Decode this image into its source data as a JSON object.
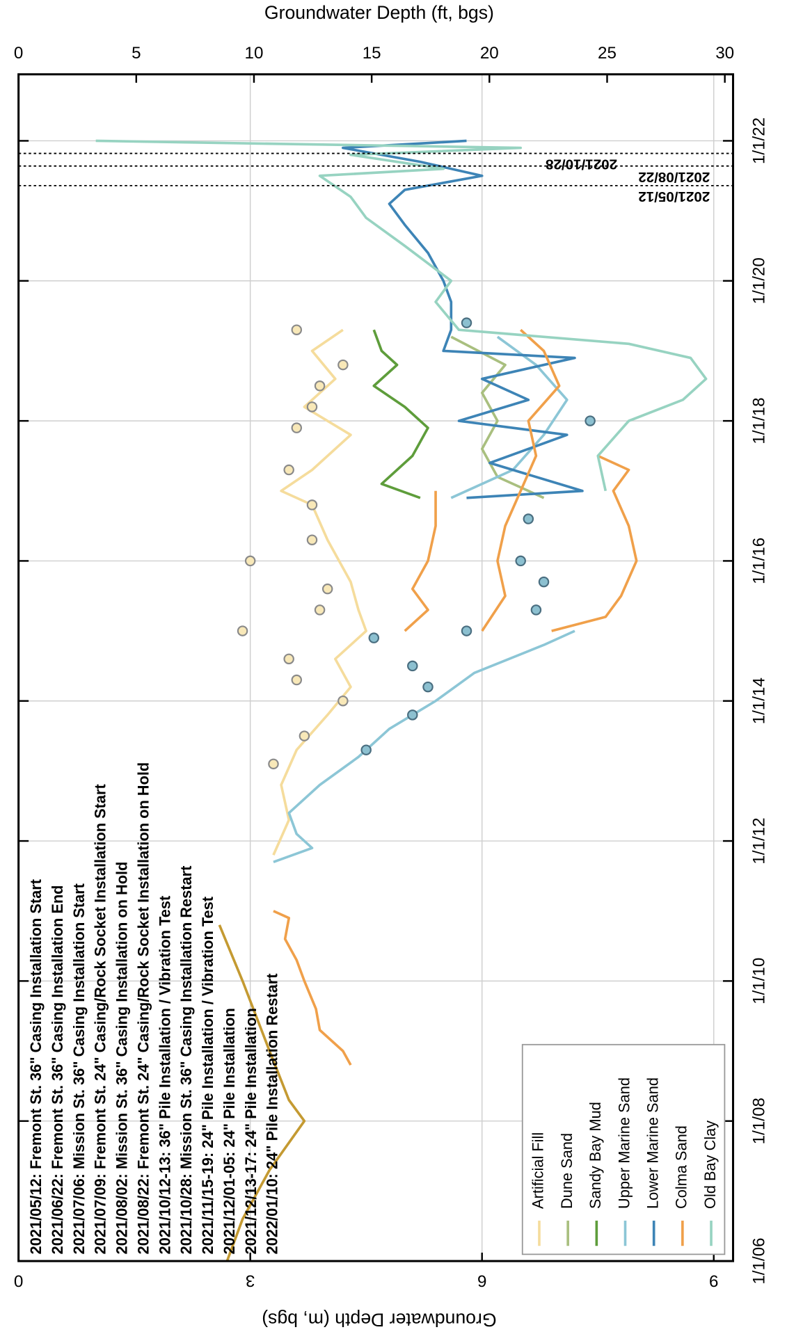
{
  "chart_data": {
    "type": "line",
    "y_label": "Groundwater Depth (m, bgs)",
    "y2_label": "Groundwater Depth (ft, bgs)",
    "ylim": [
      0,
      9.25
    ],
    "yticks": [
      0,
      3,
      6,
      9
    ],
    "y2lim": [
      0,
      30.35
    ],
    "y2ticks": [
      0,
      5,
      10,
      15,
      20,
      25,
      30
    ],
    "xlim": [
      2006,
      2022.95
    ],
    "xticks": [
      {
        "value": 2006,
        "label": "1/1/06"
      },
      {
        "value": 2008,
        "label": "1/1/08"
      },
      {
        "value": 2010,
        "label": "1/1/10"
      },
      {
        "value": 2012,
        "label": "1/1/12"
      },
      {
        "value": 2014,
        "label": "1/1/14"
      },
      {
        "value": 2016,
        "label": "1/1/16"
      },
      {
        "value": 2018,
        "label": "1/1/18"
      },
      {
        "value": 2020,
        "label": "1/1/20"
      },
      {
        "value": 2022,
        "label": "1/1/22"
      }
    ],
    "grid": true,
    "legend": "bottom-right",
    "notes": [
      "2021/05/12: Fremont St. 36\" Casing Installation Start",
      "2021/06/22: Fremont St. 36\" Casing Installation End",
      "2021/07/06: Mission St. 36\" Casing Installation Start",
      "2021/07/09: Fremont St. 24\" Casing/Rock Socket Installation Start",
      "2021/08/02: Mission St. 36\" Casing Installation on Hold",
      "2021/08/22: Fremont St. 24\" Casing/Rock Socket Installation on Hold",
      "2021/10/12-13: 36\" Pile Installation / Vibration Test",
      "2021/10/28: Mission St. 36\" Casing Installation Restart",
      "2021/11/15-19: 24\" Pile Installation / Vibration Test",
      "2021/12/01-05: 24\" Pile Installation",
      "2021/12/13-17: 24\" Pile Installation",
      "2022/01/10: 24\" Pile Installation Restart"
    ],
    "events": [
      {
        "x": 2021.36,
        "label": "2021/05/12"
      },
      {
        "x": 2021.64,
        "label": "2021/08/22"
      },
      {
        "x": 2021.82,
        "label": "2021/10/28"
      }
    ],
    "series": [
      {
        "name": "Artificial Fill",
        "color": "#f5dc9c",
        "x": [
          2011.8,
          2012.3,
          2012.8,
          2013.3,
          2013.8,
          2014.2,
          2014.6,
          2015,
          2015.3,
          2015.7,
          2016.3,
          2016.8,
          2017.0,
          2017.3,
          2017.8,
          2018.2,
          2018.6,
          2019,
          2019.3
        ],
        "values": [
          3.3,
          3.5,
          3.4,
          3.6,
          4.0,
          4.3,
          4.1,
          4.5,
          4.4,
          4.3,
          4.0,
          3.8,
          3.4,
          3.8,
          4.3,
          3.7,
          4.1,
          3.8,
          4.2
        ]
      },
      {
        "name": "Dune Sand",
        "color": "#a9bf7f",
        "x": [
          2016.9,
          2017.2,
          2017.6,
          2018,
          2018.4,
          2018.8,
          2019.2
        ],
        "values": [
          6.8,
          6.2,
          6.0,
          6.2,
          6.0,
          6.3,
          5.6
        ]
      },
      {
        "name": "Sandy Bay Mud",
        "color": "#5e9d3b",
        "x": [
          2016.9,
          2017.1,
          2017.5,
          2017.9,
          2018.2,
          2018.5,
          2018.8,
          2019,
          2019.3
        ],
        "values": [
          5.2,
          4.7,
          5.1,
          5.3,
          5.0,
          4.6,
          4.9,
          4.7,
          4.6
        ]
      },
      {
        "name": "Upper Marine Sand",
        "color": "#8cc6d6",
        "x": [
          2011.7,
          2011.9,
          2012.1,
          2012.4,
          2012.8,
          2013.2,
          2013.6,
          2014,
          2014.4,
          2014.8,
          2015,
          null,
          2016.9,
          2017.3,
          2017.8,
          2018.3,
          2018.8,
          2019.2
        ],
        "values": [
          3.3,
          3.8,
          3.6,
          3.5,
          3.9,
          4.4,
          4.8,
          5.4,
          5.9,
          6.8,
          7.2,
          null,
          5.6,
          6.4,
          6.8,
          7.1,
          6.7,
          6.2
        ]
      },
      {
        "name": "Lower Marine Sand",
        "color": "#3d84b6",
        "x": [
          2016.9,
          2017.0,
          2017.4,
          2017.8,
          2018,
          2018.3,
          2018.6,
          2018.9,
          2019,
          2019.3,
          2019.7,
          2020,
          2020.4,
          2020.8,
          2021.1,
          2021.3,
          2021.5,
          2021.7,
          2021.9,
          2022
        ],
        "values": [
          5.8,
          7.3,
          6.1,
          7.1,
          5.7,
          6.6,
          6.0,
          7.2,
          5.5,
          5.6,
          5.6,
          5.5,
          5.3,
          5.0,
          4.8,
          5.0,
          6.0,
          5.2,
          4.2,
          5.8
        ]
      },
      {
        "name": "Colma Sand",
        "color": "#f0a04a",
        "x": [
          2008.8,
          2009,
          2009.3,
          2009.6,
          2010,
          2010.3,
          2010.6,
          2010.9,
          2011,
          null,
          2015,
          2015.3,
          2015.6,
          2016,
          2016.5,
          2017,
          null,
          2015,
          2015.5,
          2016,
          2016.5,
          2017,
          2017.5,
          2018,
          2018.5,
          2019,
          2019.3,
          null,
          2015,
          2015.2,
          2015.5,
          2016,
          2016.5,
          2017,
          2017.3,
          2017.5
        ],
        "values": [
          4.3,
          4.2,
          3.9,
          3.85,
          3.7,
          3.6,
          3.45,
          3.5,
          3.3,
          null,
          5.0,
          5.3,
          5.1,
          5.3,
          5.4,
          5.4,
          null,
          6.0,
          6.3,
          6.2,
          6.3,
          6.5,
          6.7,
          6.6,
          7.0,
          6.8,
          6.5,
          null,
          6.9,
          7.6,
          7.8,
          8.0,
          7.9,
          7.7,
          7.9,
          7.5
        ]
      },
      {
        "name": "Old Bay Clay",
        "color": "#97d3c1",
        "x": [
          2017,
          2017.5,
          2018,
          2018.3,
          2018.6,
          2018.9,
          2019.1,
          2019.3,
          2019.7,
          2020,
          2020.5,
          2020.9,
          2021.2,
          2021.5,
          2021.6,
          2021.8,
          2021.9,
          2022
        ],
        "values": [
          7.6,
          7.5,
          7.9,
          8.6,
          8.9,
          8.7,
          7.9,
          5.7,
          5.4,
          5.6,
          5.0,
          4.5,
          4.3,
          3.9,
          5.5,
          4.3,
          6.5,
          1.0
        ]
      },
      {
        "color": "#c49a32",
        "x": [
          2006,
          2006.6,
          2007.3,
          2008,
          2008.3,
          2009,
          2010,
          2010.8
        ],
        "values": [
          2.7,
          2.9,
          3.25,
          3.7,
          3.5,
          3.25,
          2.9,
          2.6
        ]
      }
    ],
    "markers": [
      {
        "color": "#f8e8b8",
        "stroke": "#8a8a8a",
        "x": [
          2013.1,
          2013.5,
          2014,
          2014.3,
          2014.6,
          2015,
          2015.3,
          2015.6,
          2016,
          2016.3,
          2016.8,
          2017.3,
          2017.9,
          2018.2,
          2018.5,
          2018.8,
          2019.3
        ],
        "values": [
          3.3,
          3.7,
          4.2,
          3.6,
          3.5,
          2.9,
          3.9,
          4.0,
          3.0,
          3.8,
          3.8,
          3.5,
          3.6,
          3.8,
          3.9,
          4.2,
          3.6
        ]
      },
      {
        "color": "#8cc0d0",
        "stroke": "#4a6e80",
        "x": [
          2013.3,
          2013.8,
          2014.2,
          2014.5,
          2014.9,
          2015,
          2015.3,
          2015.7,
          2016,
          2016.6,
          2018,
          2019.4
        ],
        "values": [
          4.5,
          5.1,
          5.3,
          5.1,
          4.6,
          5.8,
          6.7,
          6.8,
          6.5,
          6.6,
          7.4,
          5.8
        ]
      }
    ]
  }
}
